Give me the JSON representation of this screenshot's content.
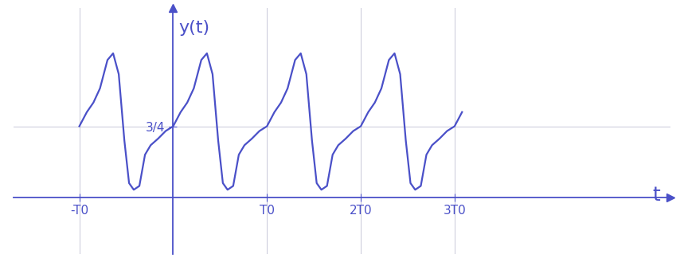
{
  "chart_data": {
    "type": "line",
    "y_label": "y(t)",
    "x_label": "t",
    "color": "#4a50c8",
    "grid": true,
    "x": [
      -1,
      -0.92,
      -0.85,
      -0.78,
      -0.7,
      -0.64,
      -0.58,
      -0.52,
      -0.47,
      -0.42,
      -0.36,
      -0.3,
      -0.24,
      -0.16,
      -0.08,
      0,
      0.08,
      0.15,
      0.22,
      0.3,
      0.36,
      0.42,
      0.48,
      0.53,
      0.58,
      0.64,
      0.7,
      0.76,
      0.84,
      0.92,
      1,
      1.08,
      1.15,
      1.22,
      1.3,
      1.36,
      1.42,
      1.48,
      1.53,
      1.58,
      1.64,
      1.7,
      1.76,
      1.84,
      1.92,
      2,
      2.08,
      2.15,
      2.22,
      2.3,
      2.36,
      2.42,
      2.48,
      2.53,
      2.58,
      2.64,
      2.7,
      2.76,
      2.84,
      2.92,
      3,
      3.08
    ],
    "values": [
      0.75,
      0.9,
      1.0,
      1.15,
      1.45,
      1.52,
      1.3,
      0.6,
      0.15,
      0.08,
      0.12,
      0.45,
      0.55,
      0.62,
      0.7,
      0.75,
      0.9,
      1.0,
      1.15,
      1.45,
      1.52,
      1.3,
      0.6,
      0.15,
      0.08,
      0.12,
      0.45,
      0.55,
      0.62,
      0.7,
      0.75,
      0.9,
      1.0,
      1.15,
      1.45,
      1.52,
      1.3,
      0.6,
      0.15,
      0.08,
      0.12,
      0.45,
      0.55,
      0.62,
      0.7,
      0.75,
      0.9,
      1.0,
      1.15,
      1.45,
      1.52,
      1.3,
      0.6,
      0.15,
      0.08,
      0.12,
      0.45,
      0.55,
      0.62,
      0.7,
      0.75,
      0.9
    ],
    "xlim": [
      -1.7,
      5.3
    ],
    "ylim": [
      -0.6,
      2.0
    ],
    "xticks": [
      {
        "value": -1,
        "label": "-T0"
      },
      {
        "value": 1,
        "label": "T0"
      },
      {
        "value": 2,
        "label": "2T0"
      },
      {
        "value": 3,
        "label": "3T0"
      }
    ],
    "yticks": [
      {
        "value": 0.75,
        "label": "3/4"
      }
    ]
  }
}
